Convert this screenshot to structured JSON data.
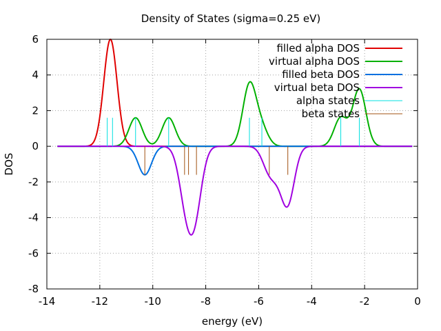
{
  "chart_data": {
    "type": "line",
    "title": "Density of States (sigma=0.25 eV)",
    "xlabel": "energy (eV)",
    "ylabel": "DOS",
    "xlim": [
      -14,
      0
    ],
    "ylim": [
      -8,
      6
    ],
    "x_ticks": [
      -14,
      -12,
      -10,
      -8,
      -6,
      -4,
      -2,
      0
    ],
    "y_ticks": [
      -8,
      -6,
      -4,
      -2,
      0,
      2,
      4,
      6
    ],
    "x_tick_labels": [
      "-14",
      "-12",
      "-10",
      "-8",
      "-6",
      "-4",
      "-2",
      "0"
    ],
    "y_tick_labels": [
      "-8",
      "-6",
      "-4",
      "-2",
      "0",
      "2",
      "4",
      "6"
    ],
    "grid": true,
    "legend_position": "top-right",
    "sigma": 0.25,
    "x_range_plotted": [
      -13.6,
      -0.2
    ],
    "series": [
      {
        "name": "filled alpha DOS",
        "color": "#e00000",
        "kind": "dos",
        "sign": 1,
        "peaks": [
          {
            "center": -11.6,
            "height": 6.0
          }
        ]
      },
      {
        "name": "virtual alpha DOS",
        "color": "#00b000",
        "kind": "dos",
        "sign": 1,
        "peaks": [
          {
            "center": -10.65,
            "height": 1.6
          },
          {
            "center": -9.4,
            "height": 1.6
          },
          {
            "center": -6.35,
            "height": 3.4
          },
          {
            "center": -5.9,
            "height": 1.0
          },
          {
            "center": -2.9,
            "height": 1.6
          },
          {
            "center": -2.2,
            "height": 3.2
          }
        ]
      },
      {
        "name": "filled beta DOS",
        "color": "#0070e0",
        "kind": "dos",
        "sign": -1,
        "peaks": [
          {
            "center": -10.3,
            "height": 1.6
          }
        ]
      },
      {
        "name": "virtual beta DOS",
        "color": "#a000e0",
        "kind": "dos",
        "sign": -1,
        "peaks": [
          {
            "center": -8.8,
            "height": 2.1
          },
          {
            "center": -8.55,
            "height": 2.1
          },
          {
            "center": -8.35,
            "height": 2.2
          },
          {
            "center": -5.62,
            "height": 1.2
          },
          {
            "center": -5.3,
            "height": 0.9
          },
          {
            "center": -4.9,
            "height": 3.1
          }
        ]
      },
      {
        "name": "alpha states",
        "color": "#00e0e0",
        "kind": "sticks",
        "sign": 1,
        "stick_height": 1.6,
        "positions": [
          -11.72,
          -11.52,
          -10.65,
          -9.4,
          -6.35,
          -5.88,
          -2.9,
          -2.2
        ]
      },
      {
        "name": "beta states",
        "color": "#a05010",
        "kind": "sticks",
        "sign": -1,
        "stick_height": 1.6,
        "positions": [
          -10.3,
          -8.8,
          -8.65,
          -8.35,
          -5.6,
          -4.9
        ]
      }
    ]
  }
}
